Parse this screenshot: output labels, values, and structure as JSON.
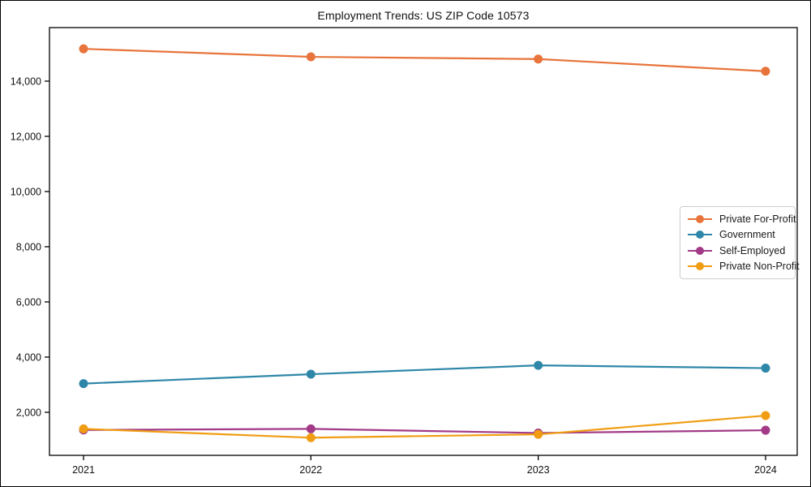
{
  "figure": {
    "background": "#ffffff",
    "border_color": "#000000",
    "axis_color": "#000000",
    "text_color": "#111111",
    "legend_border_color": "#cccccc"
  },
  "chart_data": {
    "type": "line",
    "title": "Employment Trends: US ZIP Code 10573",
    "xlabel": "",
    "ylabel": "",
    "x": [
      2021,
      2022,
      2023,
      2024
    ],
    "xtick_labels": [
      "2021",
      "2022",
      "2023",
      "2024"
    ],
    "yticks": [
      2000,
      4000,
      6000,
      8000,
      10000,
      12000,
      14000
    ],
    "ytick_labels": [
      "2,000",
      "4,000",
      "6,000",
      "8,000",
      "10,000",
      "12,000",
      "14,000"
    ],
    "ylim": [
      440,
      15940
    ],
    "grid": false,
    "legend_position": "center right",
    "series": [
      {
        "name": "Private For-Profit",
        "color": "#e8743b",
        "values": [
          15170,
          14880,
          14800,
          14360
        ]
      },
      {
        "name": "Government",
        "color": "#2e87a8",
        "values": [
          3040,
          3380,
          3700,
          3600
        ]
      },
      {
        "name": "Self-Employed",
        "color": "#a23a87",
        "values": [
          1360,
          1400,
          1250,
          1350
        ]
      },
      {
        "name": "Private Non-Profit",
        "color": "#f09d13",
        "values": [
          1400,
          1080,
          1200,
          1880
        ]
      }
    ]
  }
}
